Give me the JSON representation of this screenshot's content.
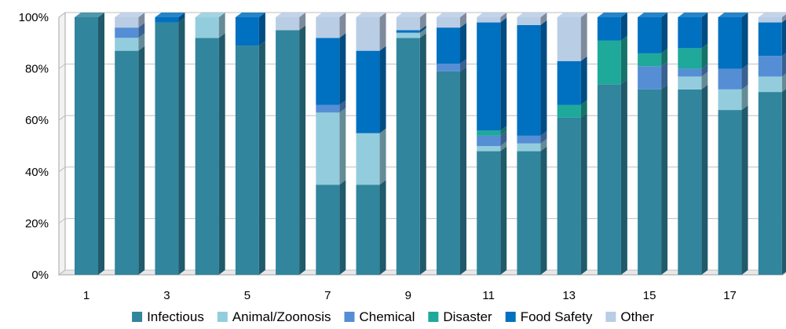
{
  "chart_data": {
    "type": "bar",
    "stacked": true,
    "percent": true,
    "categories": [
      "1",
      "2",
      "3",
      "4",
      "5",
      "6",
      "7",
      "8",
      "9",
      "10",
      "11",
      "12",
      "13",
      "14",
      "15",
      "16",
      "17",
      "18"
    ],
    "x_tick_labels": [
      "1",
      "3",
      "5",
      "7",
      "9",
      "11",
      "13",
      "15",
      "17"
    ],
    "y_tick_labels": [
      "0%",
      "20%",
      "40%",
      "60%",
      "80%",
      "100%"
    ],
    "ylim": [
      0,
      100
    ],
    "grid": true,
    "legend_position": "bottom",
    "series": [
      {
        "name": "Infectious",
        "color": "#31859C",
        "values": [
          100,
          87,
          98,
          92,
          89,
          95,
          35,
          35,
          92,
          79,
          48,
          48,
          61,
          74,
          72,
          72,
          64,
          71
        ]
      },
      {
        "name": "Animal/Zoonosis",
        "color": "#93CDDD",
        "values": [
          0,
          5,
          0,
          8,
          0,
          0,
          28,
          20,
          2,
          0,
          2,
          3,
          0,
          0,
          0,
          5,
          8,
          6
        ]
      },
      {
        "name": "Chemical",
        "color": "#558ED5",
        "values": [
          0,
          4,
          0,
          0,
          0,
          0,
          3,
          0,
          0,
          3,
          4,
          3,
          0,
          0,
          9,
          3,
          8,
          8
        ]
      },
      {
        "name": "Disaster",
        "color": "#1FA99B",
        "values": [
          0,
          0,
          0,
          0,
          0,
          0,
          0,
          0,
          0,
          0,
          2,
          0,
          5,
          17,
          5,
          8,
          0,
          0
        ]
      },
      {
        "name": "Food Safety",
        "color": "#0070C0",
        "values": [
          0,
          0,
          2,
          0,
          11,
          0,
          26,
          32,
          1,
          14,
          42,
          43,
          17,
          9,
          14,
          12,
          20,
          13
        ]
      },
      {
        "name": "Other",
        "color": "#B9CDE5",
        "values": [
          0,
          4,
          0,
          0,
          0,
          5,
          8,
          13,
          5,
          4,
          2,
          3,
          17,
          0,
          0,
          0,
          0,
          2
        ]
      }
    ]
  }
}
